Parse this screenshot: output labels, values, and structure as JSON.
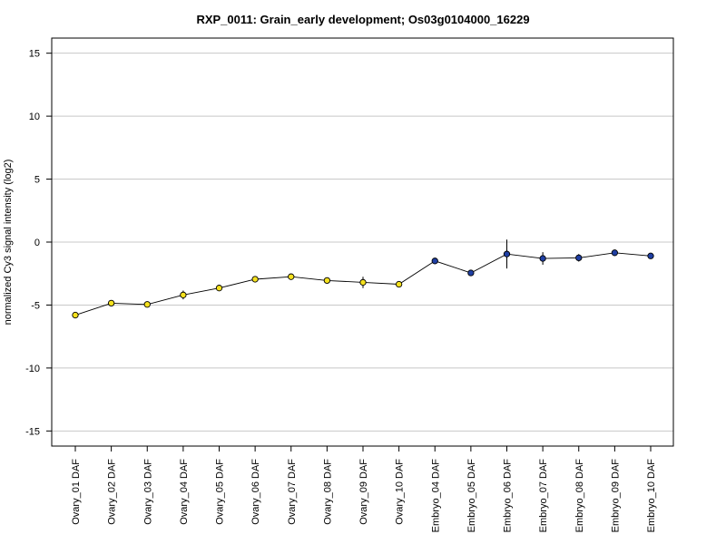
{
  "chart_data": {
    "type": "line",
    "title": "RXP_0011: Grain_early development; Os03g0104000_16229",
    "xlabel": "",
    "ylabel": "normalized Cy3 signal intensity (log2)",
    "ylim": [
      -16.2,
      16.2
    ],
    "yticks": [
      15,
      10,
      5,
      0,
      -5,
      -10,
      -15
    ],
    "ytick_labels": [
      "15",
      "10",
      "5",
      "0",
      "-5",
      "-10",
      "-15"
    ],
    "grid": true,
    "categories": [
      "Ovary_01 DAF",
      "Ovary_02 DAF",
      "Ovary_03 DAF",
      "Ovary_04 DAF",
      "Ovary_05 DAF",
      "Ovary_06 DAF",
      "Ovary_07 DAF",
      "Ovary_08 DAF",
      "Ovary_09 DAF",
      "Ovary_10 DAF",
      "Embryo_04 DAF",
      "Embryo_05 DAF",
      "Embryo_06 DAF",
      "Embryo_07 DAF",
      "Embryo_08 DAF",
      "Embryo_09 DAF",
      "Embryo_10 DAF"
    ],
    "values": [
      -5.8,
      -4.85,
      -4.95,
      -4.2,
      -3.65,
      -2.95,
      -2.75,
      -3.05,
      -3.2,
      -3.35,
      -1.5,
      -2.45,
      -0.95,
      -1.3,
      -1.25,
      -0.85,
      -1.1
    ],
    "errors": [
      0.1,
      0.1,
      0.1,
      0.35,
      0.15,
      0.1,
      0.15,
      0.2,
      0.45,
      0.25,
      0.1,
      0.1,
      1.15,
      0.5,
      0.3,
      0.2,
      0.1
    ],
    "point_colors": [
      "#f5e11e",
      "#f5e11e",
      "#f5e11e",
      "#f5e11e",
      "#f5e11e",
      "#f5e11e",
      "#f5e11e",
      "#f5e11e",
      "#f5e11e",
      "#f5e11e",
      "#1f3fa3",
      "#1f3fa3",
      "#1f3fa3",
      "#1f3fa3",
      "#1f3fa3",
      "#1f3fa3",
      "#1f3fa3"
    ]
  }
}
